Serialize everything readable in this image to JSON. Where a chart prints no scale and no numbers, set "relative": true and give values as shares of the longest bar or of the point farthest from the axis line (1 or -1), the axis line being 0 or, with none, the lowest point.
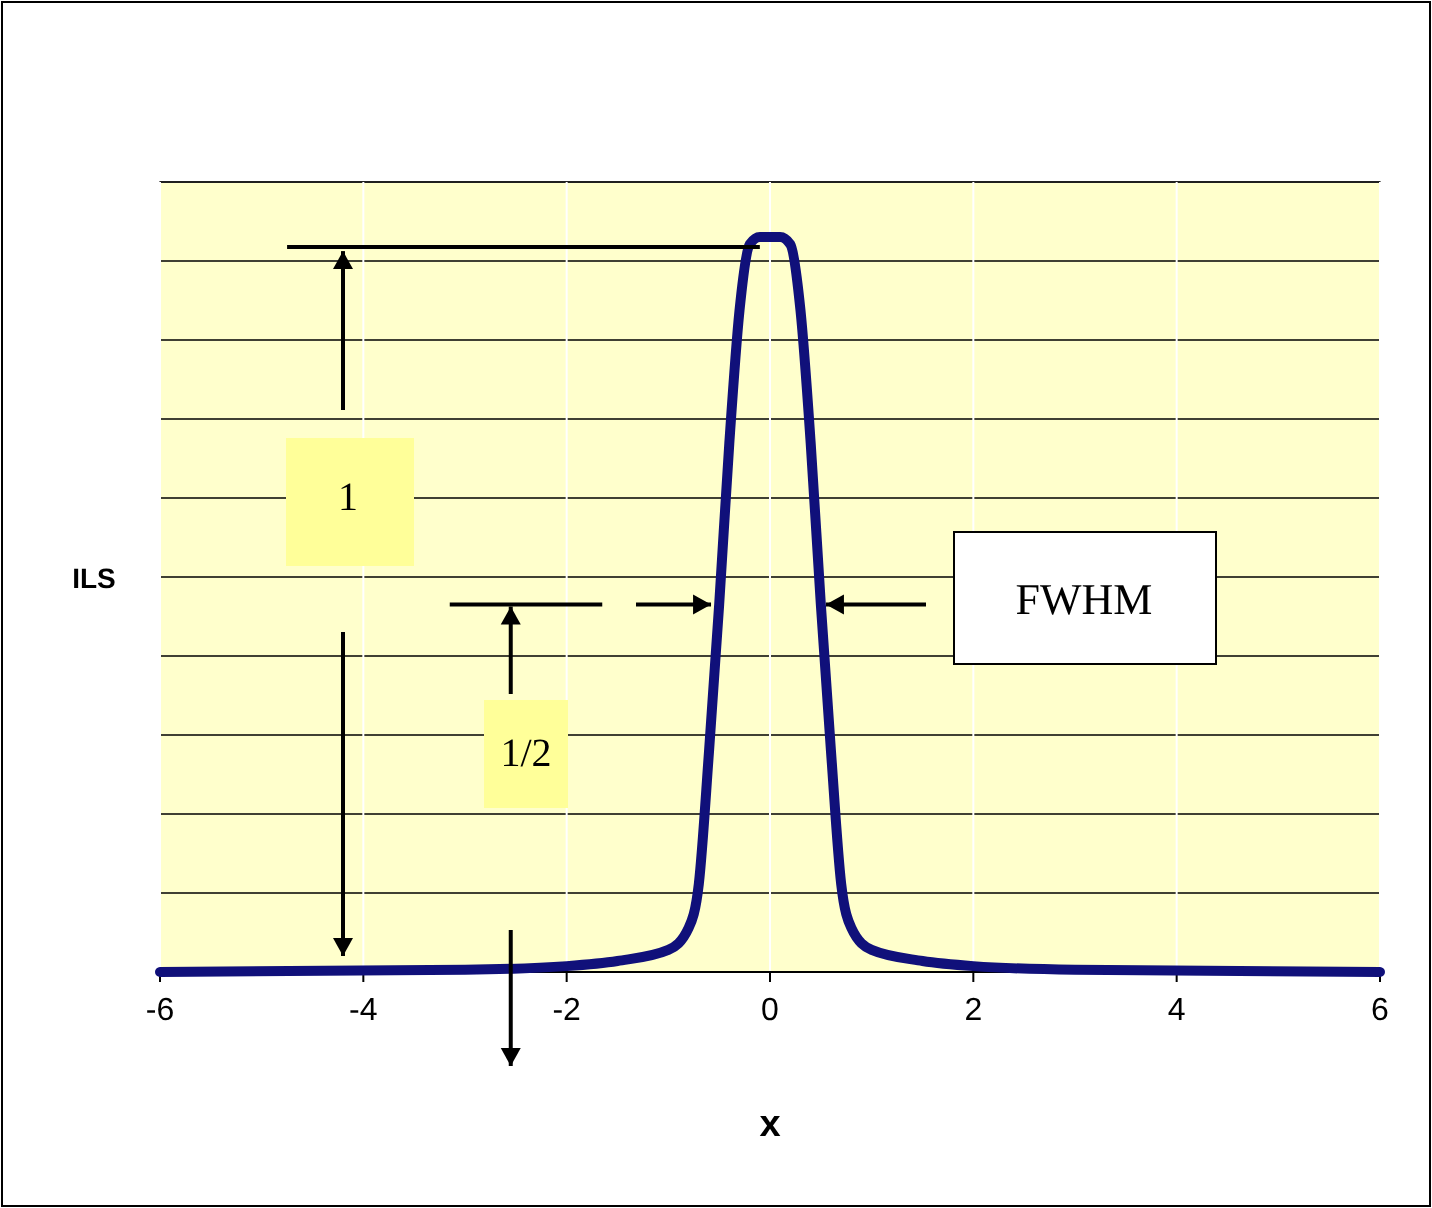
{
  "chart_data": {
    "type": "line",
    "relative": true,
    "xlabel": "x",
    "ylabel": "ILS",
    "x": [
      -6,
      -3,
      -2,
      -1.5,
      -1,
      -0.8,
      -0.7,
      -0.6,
      -0.5,
      -0.4,
      -0.3,
      -0.2,
      -0.1,
      0,
      0.1,
      0.2,
      0.3,
      0.4,
      0.5,
      0.6,
      0.7,
      0.8,
      1,
      1.5,
      2,
      3,
      6
    ],
    "series": [
      {
        "color": "#10107a",
        "values": [
          0,
          0.003,
          0.008,
          0.015,
          0.03,
          0.06,
          0.12,
          0.3,
          0.5,
          0.72,
          0.9,
          0.99,
          1,
          1,
          1,
          0.99,
          0.9,
          0.72,
          0.5,
          0.3,
          0.12,
          0.06,
          0.03,
          0.015,
          0.008,
          0.003,
          0
        ]
      }
    ],
    "xlim": [
      -6,
      6
    ],
    "xticks": [
      -6,
      -4,
      -2,
      0,
      2,
      4,
      6
    ],
    "grid": true,
    "annotations": [
      "1",
      "1/2",
      "FWHM"
    ]
  }
}
